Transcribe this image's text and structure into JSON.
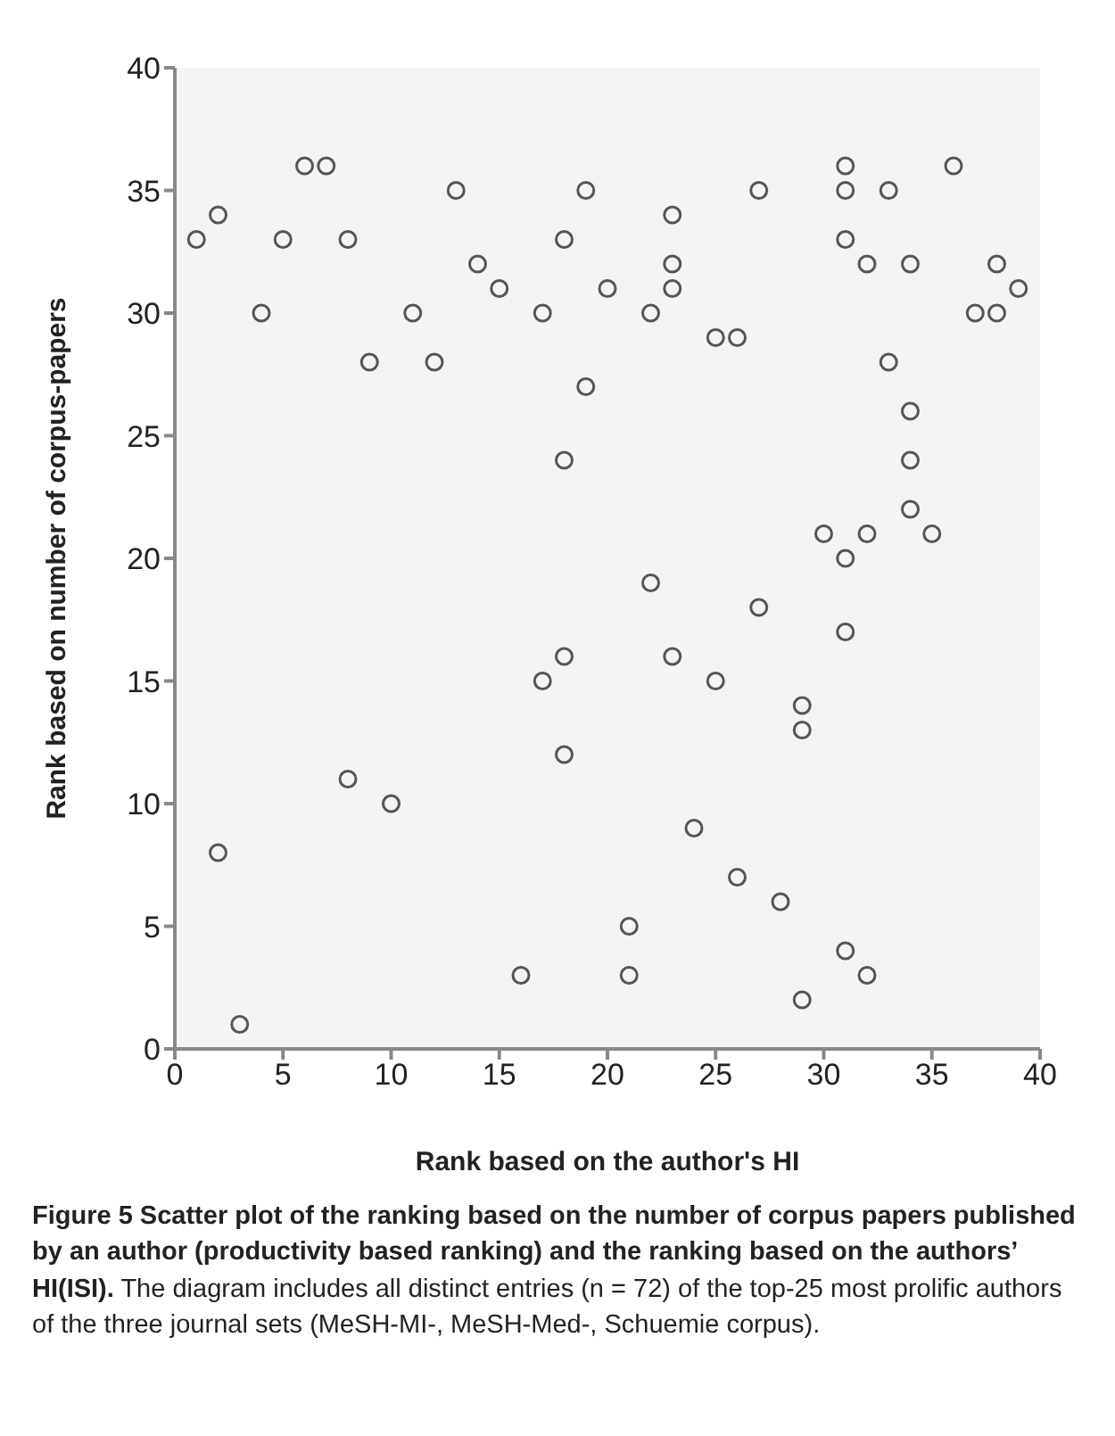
{
  "chart_data": {
    "type": "scatter",
    "xlabel": "Rank based on the author's HI",
    "ylabel": "Rank based on number of corpus-papers",
    "xlim": [
      0,
      40
    ],
    "xticks": [
      0,
      5,
      10,
      15,
      20,
      25,
      30,
      35,
      40
    ],
    "ylim": [
      0,
      40
    ],
    "yticks": [
      0,
      5,
      10,
      15,
      20,
      25,
      30,
      35,
      40
    ],
    "grid": false,
    "legend": false,
    "marker": "circle",
    "series": [
      {
        "color": "#555555",
        "x": [
          1,
          2,
          4,
          5,
          6,
          7,
          8,
          9,
          11,
          12,
          13,
          14,
          15,
          17,
          18,
          19,
          20,
          22,
          23,
          23,
          23,
          25,
          26,
          27,
          31,
          31,
          31,
          32,
          33,
          34,
          36,
          37,
          38,
          38,
          39,
          33,
          34,
          34,
          34,
          35,
          30,
          31,
          32,
          31,
          19,
          18,
          22,
          27,
          18,
          17,
          23,
          25,
          18,
          29,
          29,
          8,
          10,
          2,
          24,
          26,
          28,
          21,
          21,
          16,
          31,
          32,
          29,
          3
        ],
        "values": [
          33,
          34,
          30,
          33,
          36,
          36,
          33,
          28,
          30,
          28,
          35,
          32,
          31,
          30,
          33,
          35,
          31,
          30,
          34,
          32,
          31,
          29,
          29,
          35,
          36,
          35,
          33,
          32,
          35,
          32,
          36,
          30,
          32,
          30,
          31,
          28,
          26,
          24,
          22,
          21,
          21,
          20,
          21,
          17,
          27,
          24,
          19,
          18,
          16,
          15,
          16,
          15,
          12,
          14,
          13,
          11,
          10,
          8,
          9,
          7,
          6,
          5,
          3,
          3,
          4,
          3,
          2,
          1
        ]
      }
    ],
    "annotations": [
      "Figure 5 Scatter plot of the ranking based on the number of corpus papers published by an author (productivity based ranking) and the ranking based on the authors’ HI(ISI).",
      "The diagram includes all distinct entries (n = 72) of the top-25 most prolific authors of the three journal sets (MeSH-MI-, MeSH-Med-, Schuemie corpus)."
    ]
  }
}
